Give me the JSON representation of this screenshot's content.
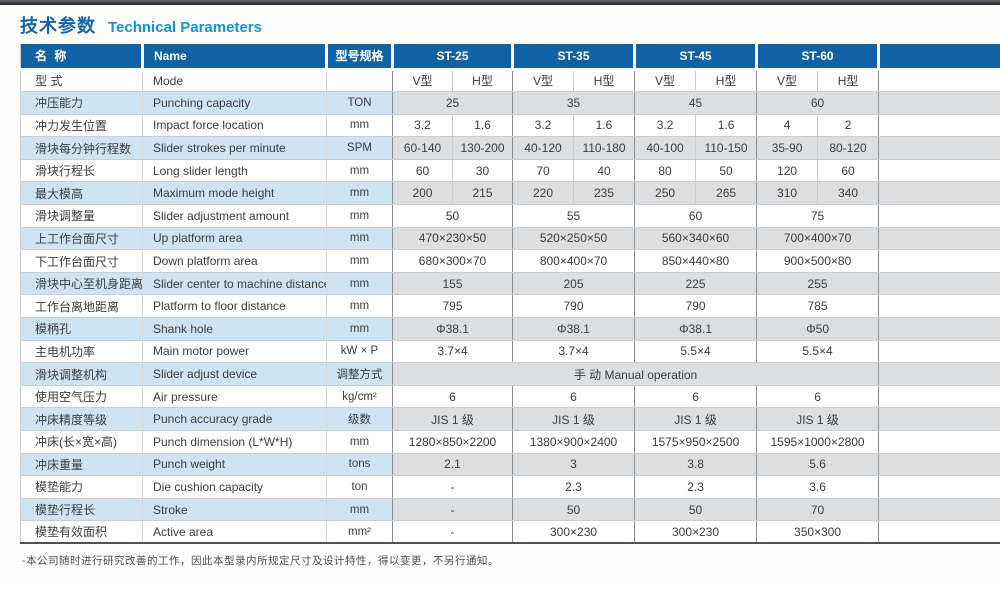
{
  "page": {
    "title_zh": "技术参数",
    "title_en": "Technical Parameters",
    "footnote": "-本公司随时进行研究改善的工作，因此本型录内所规定尺寸及设计特性，得以变更，不另行通知。"
  },
  "colors": {
    "header_blue": "#1161a5",
    "shaded_row_blue": "#cfe4f3",
    "shaded_row_gray": "#dcdedf",
    "title_dark_blue": "#1464a8",
    "title_bright_blue": "#1593d2"
  },
  "table": {
    "headers": {
      "name_zh": "名 称",
      "name_en": "Name",
      "spec": "型号规格",
      "models": [
        "ST-25",
        "ST-35",
        "ST-45",
        "ST-60"
      ],
      "extra": ""
    },
    "rows": [
      {
        "zh": "型 式",
        "en": "Mode",
        "spec": "",
        "type": "split",
        "values": [
          [
            "V型",
            "H型"
          ],
          [
            "V型",
            "H型"
          ],
          [
            "V型",
            "H型"
          ],
          [
            "V型",
            "H型"
          ]
        ]
      },
      {
        "zh": "冲压能力",
        "en": "Punching capacity",
        "spec": "TON",
        "type": "merged",
        "values": [
          "25",
          "35",
          "45",
          "60"
        ]
      },
      {
        "zh": "冲力发生位置",
        "en": "Impact force location",
        "spec": "mm",
        "type": "split",
        "values": [
          [
            "3.2",
            "1.6"
          ],
          [
            "3.2",
            "1.6"
          ],
          [
            "3.2",
            "1.6"
          ],
          [
            "4",
            "2"
          ]
        ]
      },
      {
        "zh": "滑块每分钟行程数",
        "en": "Slider strokes per minute",
        "spec": "SPM",
        "type": "split",
        "values": [
          [
            "60-140",
            "130-200"
          ],
          [
            "40-120",
            "110-180"
          ],
          [
            "40-100",
            "110-150"
          ],
          [
            "35-90",
            "80-120"
          ]
        ]
      },
      {
        "zh": "滑块行程长",
        "en": "Long slider length",
        "spec": "mm",
        "type": "split",
        "values": [
          [
            "60",
            "30"
          ],
          [
            "70",
            "40"
          ],
          [
            "80",
            "50"
          ],
          [
            "120",
            "60"
          ]
        ]
      },
      {
        "zh": "最大模高",
        "en": "Maximum mode height",
        "spec": "mm",
        "type": "split",
        "values": [
          [
            "200",
            "215"
          ],
          [
            "220",
            "235"
          ],
          [
            "250",
            "265"
          ],
          [
            "310",
            "340"
          ]
        ]
      },
      {
        "zh": "滑块调整量",
        "en": "Slider adjustment amount",
        "spec": "mm",
        "type": "merged",
        "values": [
          "50",
          "55",
          "60",
          "75"
        ]
      },
      {
        "zh": "上工作台面尺寸",
        "en": "Up platform area",
        "spec": "mm",
        "type": "merged",
        "values": [
          "470×230×50",
          "520×250×50",
          "560×340×60",
          "700×400×70"
        ]
      },
      {
        "zh": "下工作台面尺寸",
        "en": "Down platform area",
        "spec": "mm",
        "type": "merged",
        "values": [
          "680×300×70",
          "800×400×70",
          "850×440×80",
          "900×500×80"
        ]
      },
      {
        "zh": "滑块中心至机身距离",
        "en": "Slider center to machine distance",
        "spec": "mm",
        "type": "merged",
        "values": [
          "155",
          "205",
          "225",
          "255"
        ]
      },
      {
        "zh": "工作台离地距离",
        "en": "Platform to floor distance",
        "spec": "mm",
        "type": "merged",
        "values": [
          "795",
          "790",
          "790",
          "785"
        ]
      },
      {
        "zh": "模柄孔",
        "en": "Shank hole",
        "spec": "mm",
        "type": "merged",
        "values": [
          "Φ38.1",
          "Φ38.1",
          "Φ38.1",
          "Φ50"
        ]
      },
      {
        "zh": "主电机功率",
        "en": "Main motor power",
        "spec": "kW × P",
        "type": "merged",
        "values": [
          "3.7×4",
          "3.7×4",
          "5.5×4",
          "5.5×4"
        ]
      },
      {
        "zh": "滑块调整机构",
        "en": "Slider adjust device",
        "spec": "调整方式",
        "type": "fullspan",
        "values": [
          "手 动 Manual operation"
        ]
      },
      {
        "zh": "使用空气压力",
        "en": "Air pressure",
        "spec": "kg/cm²",
        "type": "merged",
        "values": [
          "6",
          "6",
          "6",
          "6"
        ]
      },
      {
        "zh": "冲床精度等级",
        "en": "Punch accuracy grade",
        "spec": "级数",
        "type": "merged",
        "values": [
          "JIS 1 级",
          "JIS 1 级",
          "JIS 1 级",
          "JIS 1 级"
        ]
      },
      {
        "zh": "冲床(长×宽×高)",
        "en": "Punch dimension (L*W*H)",
        "spec": "mm",
        "type": "merged",
        "values": [
          "1280×850×2200",
          "1380×900×2400",
          "1575×950×2500",
          "1595×1000×2800"
        ]
      },
      {
        "zh": "冲床重量",
        "en": "Punch weight",
        "spec": "tons",
        "type": "merged",
        "values": [
          "2.1",
          "3",
          "3.8",
          "5.6"
        ]
      },
      {
        "zh": "模垫能力",
        "en": "Die cushion capacity",
        "spec": "ton",
        "type": "merged",
        "values": [
          "-",
          "2.3",
          "2.3",
          "3.6"
        ]
      },
      {
        "zh": "模垫行程长",
        "en": "Stroke",
        "spec": "mm",
        "type": "merged",
        "values": [
          "-",
          "50",
          "50",
          "70"
        ]
      },
      {
        "zh": "模垫有效面积",
        "en": "Active area",
        "spec": "mm²",
        "type": "merged",
        "values": [
          "-",
          "300×230",
          "300×230",
          "350×300"
        ]
      }
    ]
  }
}
